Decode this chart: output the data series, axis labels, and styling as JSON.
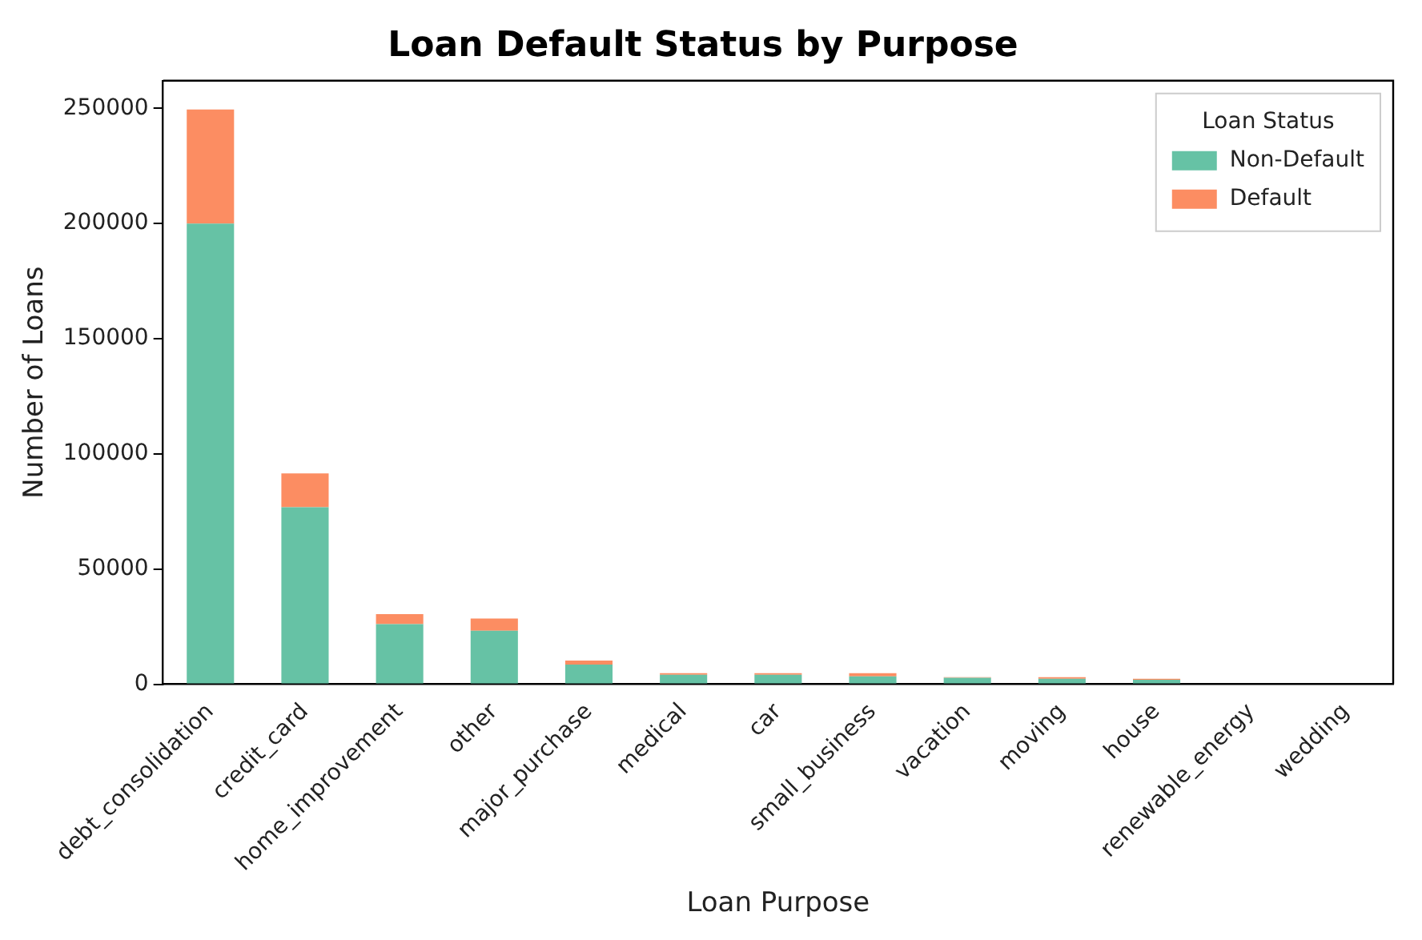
{
  "chart_data": {
    "type": "bar",
    "title": "Loan Default Status by Purpose",
    "xlabel": "Loan Purpose",
    "ylabel": "Number of Loans",
    "legend_title": "Loan Status",
    "categories": [
      "debt_consolidation",
      "credit_card",
      "home_improvement",
      "other",
      "major_purchase",
      "medical",
      "car",
      "small_business",
      "vacation",
      "moving",
      "house",
      "renewable_energy",
      "wedding"
    ],
    "series": [
      {
        "name": "Non-Default",
        "color": "#66c2a5",
        "values": [
          200000,
          76800,
          26100,
          23200,
          8500,
          4100,
          4100,
          3400,
          2800,
          2400,
          1900,
          null,
          null
        ]
      },
      {
        "name": "Default",
        "color": "#fc8d62",
        "values": [
          49500,
          14700,
          4300,
          5300,
          1800,
          700,
          700,
          1400,
          300,
          700,
          500,
          null,
          null
        ]
      }
    ],
    "stacked": true,
    "ylim": [
      0,
      262000
    ],
    "yticks": [
      0,
      50000,
      100000,
      150000,
      200000,
      250000
    ],
    "grid": false,
    "legend": "top right"
  }
}
